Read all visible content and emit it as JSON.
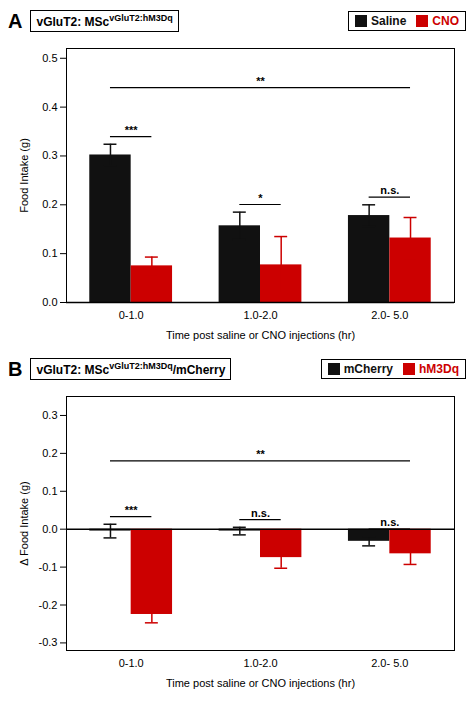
{
  "chart_data": [
    {
      "type": "bar",
      "panel_label": "A",
      "title": "vGluT2: MSc",
      "title_superscript": "vGluT2:hM3Dq",
      "xlabel": "Time post saline or CNO injections (hr)",
      "ylabel": "Food Intake (g)",
      "categories": [
        "0-1.0",
        "1.0-2.0",
        "2.0- 5.0"
      ],
      "series": [
        {
          "name": "Saline",
          "color": "#111111",
          "values": [
            0.302,
            0.157,
            0.178
          ],
          "errors": [
            0.022,
            0.028,
            0.022
          ]
        },
        {
          "name": "CNO",
          "color": "#cc0000",
          "values": [
            0.075,
            0.077,
            0.132
          ],
          "errors": [
            0.018,
            0.058,
            0.042
          ]
        }
      ],
      "ylim": [
        0,
        0.52
      ],
      "yticks": [
        {
          "value": 0,
          "label": "0.0"
        },
        0.1,
        0.2,
        0.3,
        0.4,
        0.5
      ],
      "legend": "upper right",
      "annotations": [
        {
          "text": "***",
          "category": "0-1.0"
        },
        {
          "text": "*",
          "category": "1.0-2.0"
        },
        {
          "text": "n.s.",
          "category": "2.0- 5.0"
        },
        {
          "text": "**",
          "from": "0-1.0",
          "to": "2.0- 5.0",
          "y": 0.44
        }
      ]
    },
    {
      "type": "bar",
      "panel_label": "B",
      "title": "vGluT2: MSc",
      "title_superscript": "vGluT2:hM3Dq",
      "title_suffix": "/mCherry",
      "xlabel": "Time post saline or CNO injections (hr)",
      "ylabel": "Δ Food Intake (g)",
      "categories": [
        "0-1.0",
        "1.0-2.0",
        "2.0- 5.0"
      ],
      "series": [
        {
          "name": "mCherry",
          "color": "#111111",
          "values": [
            -0.005,
            -0.005,
            -0.032
          ],
          "errors": [
            0.018,
            0.01,
            0.012
          ]
        },
        {
          "name": "hM3Dq",
          "color": "#cc0000",
          "values": [
            -0.225,
            -0.075,
            -0.065
          ],
          "errors": [
            0.022,
            0.028,
            0.028
          ]
        }
      ],
      "ylim": [
        -0.32,
        0.35
      ],
      "yticks": [
        -0.3,
        -0.2,
        -0.1,
        {
          "value": 0,
          "label": "0.0"
        },
        0.1,
        0.2,
        0.3
      ],
      "legend": "upper right",
      "annotations": [
        {
          "text": "***",
          "category": "0-1.0"
        },
        {
          "text": "n.s.",
          "category": "1.0-2.0"
        },
        {
          "text": "n.s.",
          "category": "2.0- 5.0"
        },
        {
          "text": "**",
          "from": "0-1.0",
          "to": "2.0- 5.0",
          "y": 0.18
        }
      ]
    }
  ]
}
